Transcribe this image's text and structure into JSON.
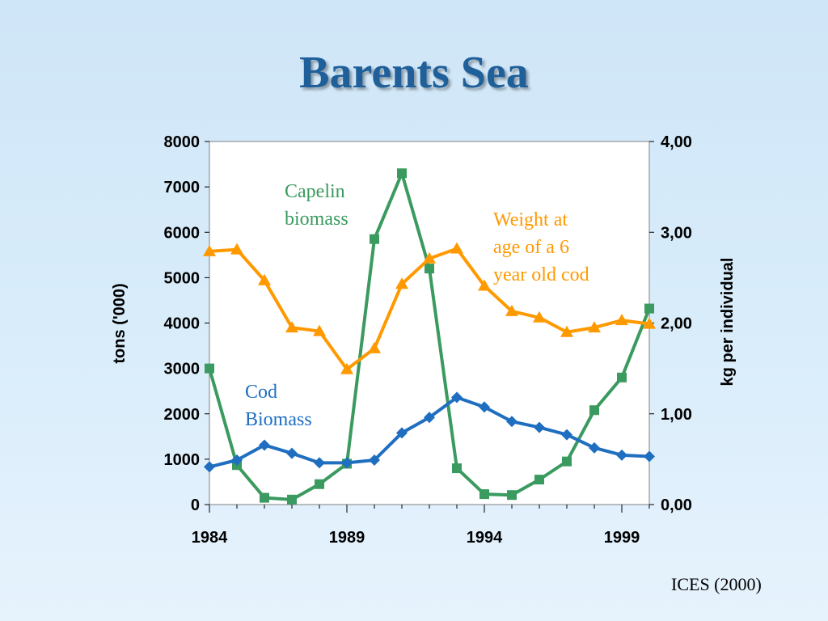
{
  "slide": {
    "title": "Barents Sea",
    "source": "ICES (2000)"
  },
  "chart_data": {
    "type": "line",
    "title": "",
    "x": [
      1984,
      1985,
      1986,
      1987,
      1988,
      1989,
      1990,
      1991,
      1992,
      1993,
      1994,
      1995,
      1996,
      1997,
      1998,
      1999,
      2000
    ],
    "xticks": [
      "1984",
      "1989",
      "1994",
      "1999"
    ],
    "xlim": [
      1984,
      2000
    ],
    "ylabel_left": "tons ('000)",
    "ylim_left": [
      0,
      8000
    ],
    "yticks_left": [
      "0",
      "1000",
      "2000",
      "3000",
      "4000",
      "5000",
      "6000",
      "7000",
      "8000"
    ],
    "ylabel_right": "kg per individual",
    "ylim_right": [
      0,
      4
    ],
    "yticks_right": [
      "0,00",
      "1,00",
      "2,00",
      "3,00",
      "4,00"
    ],
    "grid": false,
    "legend": "none",
    "series": [
      {
        "name": "Capelin biomass",
        "label_lines": [
          "Capelin",
          "biomass"
        ],
        "axis": "left",
        "color": "#3a9a5f",
        "marker": "square",
        "values": [
          3000,
          870,
          150,
          110,
          450,
          900,
          5850,
          7300,
          5200,
          800,
          230,
          210,
          550,
          950,
          2080,
          2800,
          4320
        ]
      },
      {
        "name": "Weight at age of a 6 year old cod",
        "label_lines": [
          "Weight at",
          "age of a 6",
          "year old cod"
        ],
        "axis": "right",
        "color": "#ff9900",
        "marker": "triangle",
        "values": [
          2.79,
          2.81,
          2.47,
          1.95,
          1.91,
          1.49,
          1.72,
          2.43,
          2.71,
          2.82,
          2.41,
          2.13,
          2.06,
          1.9,
          1.95,
          2.03,
          1.99
        ]
      },
      {
        "name": "Cod Biomass",
        "label_lines": [
          "Cod",
          "Biomass"
        ],
        "axis": "left",
        "color": "#1f6ec0",
        "marker": "diamond",
        "values": [
          830,
          980,
          1310,
          1130,
          920,
          920,
          980,
          1580,
          1920,
          2360,
          2150,
          1830,
          1700,
          1540,
          1250,
          1090,
          1060
        ]
      }
    ]
  }
}
